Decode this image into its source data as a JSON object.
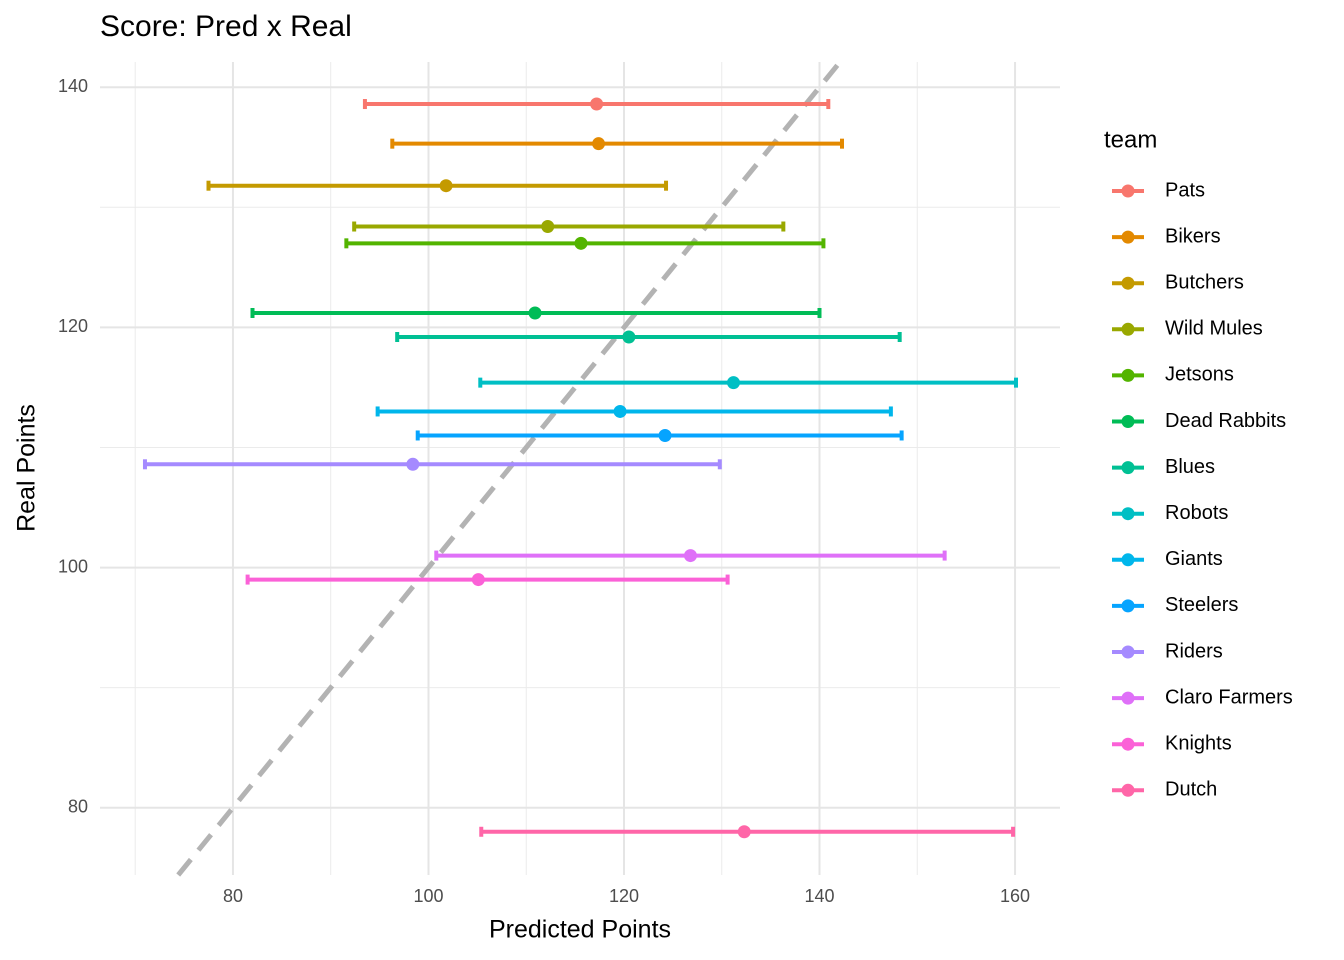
{
  "chart_data": {
    "type": "errorbar",
    "title": "Score: Pred x Real",
    "x_label": "Predicted Points",
    "y_label": "Real Points",
    "legend_title": "team",
    "xlim": [
      66.4,
      164.6
    ],
    "ylim": [
      74.4,
      142.1
    ],
    "xticks": [
      80,
      100,
      120,
      140,
      160
    ],
    "yticks": [
      80,
      100,
      120,
      140
    ],
    "grid": true,
    "identity_line": true,
    "series": [
      {
        "name": "Pats",
        "color": "#F8766D",
        "x": 117.2,
        "y": 138.6,
        "xmin": 93.5,
        "xmax": 140.9
      },
      {
        "name": "Bikers",
        "color": "#E38900",
        "x": 117.4,
        "y": 135.3,
        "xmin": 96.3,
        "xmax": 142.3
      },
      {
        "name": "Butchers",
        "color": "#C49A00",
        "x": 101.8,
        "y": 131.8,
        "xmin": 77.5,
        "xmax": 124.3
      },
      {
        "name": "Wild Mules",
        "color": "#99A800",
        "x": 112.2,
        "y": 128.4,
        "xmin": 92.4,
        "xmax": 136.3
      },
      {
        "name": "Jetsons",
        "color": "#53B400",
        "x": 115.6,
        "y": 127.0,
        "xmin": 91.6,
        "xmax": 140.4
      },
      {
        "name": "Dead Rabbits",
        "color": "#00BC56",
        "x": 110.9,
        "y": 121.2,
        "xmin": 82.0,
        "xmax": 140.0
      },
      {
        "name": "Blues",
        "color": "#00C094",
        "x": 120.5,
        "y": 119.2,
        "xmin": 96.8,
        "xmax": 148.2
      },
      {
        "name": "Robots",
        "color": "#00BFC4",
        "x": 131.2,
        "y": 115.4,
        "xmin": 105.3,
        "xmax": 160.1
      },
      {
        "name": "Giants",
        "color": "#00B6EB",
        "x": 119.6,
        "y": 113.0,
        "xmin": 94.8,
        "xmax": 147.3
      },
      {
        "name": "Steelers",
        "color": "#06A4FF",
        "x": 124.2,
        "y": 111.0,
        "xmin": 98.9,
        "xmax": 148.4
      },
      {
        "name": "Riders",
        "color": "#A58AFF",
        "x": 98.4,
        "y": 108.6,
        "xmin": 71.0,
        "xmax": 129.8
      },
      {
        "name": "Claro Farmers",
        "color": "#DF70F8",
        "x": 126.8,
        "y": 101.0,
        "xmin": 100.8,
        "xmax": 152.8
      },
      {
        "name": "Knights",
        "color": "#FB61D7",
        "x": 105.1,
        "y": 99.0,
        "xmin": 81.5,
        "xmax": 130.6
      },
      {
        "name": "Dutch",
        "color": "#FF66A8",
        "x": 132.3,
        "y": 78.0,
        "xmin": 105.4,
        "xmax": 159.8
      }
    ]
  }
}
